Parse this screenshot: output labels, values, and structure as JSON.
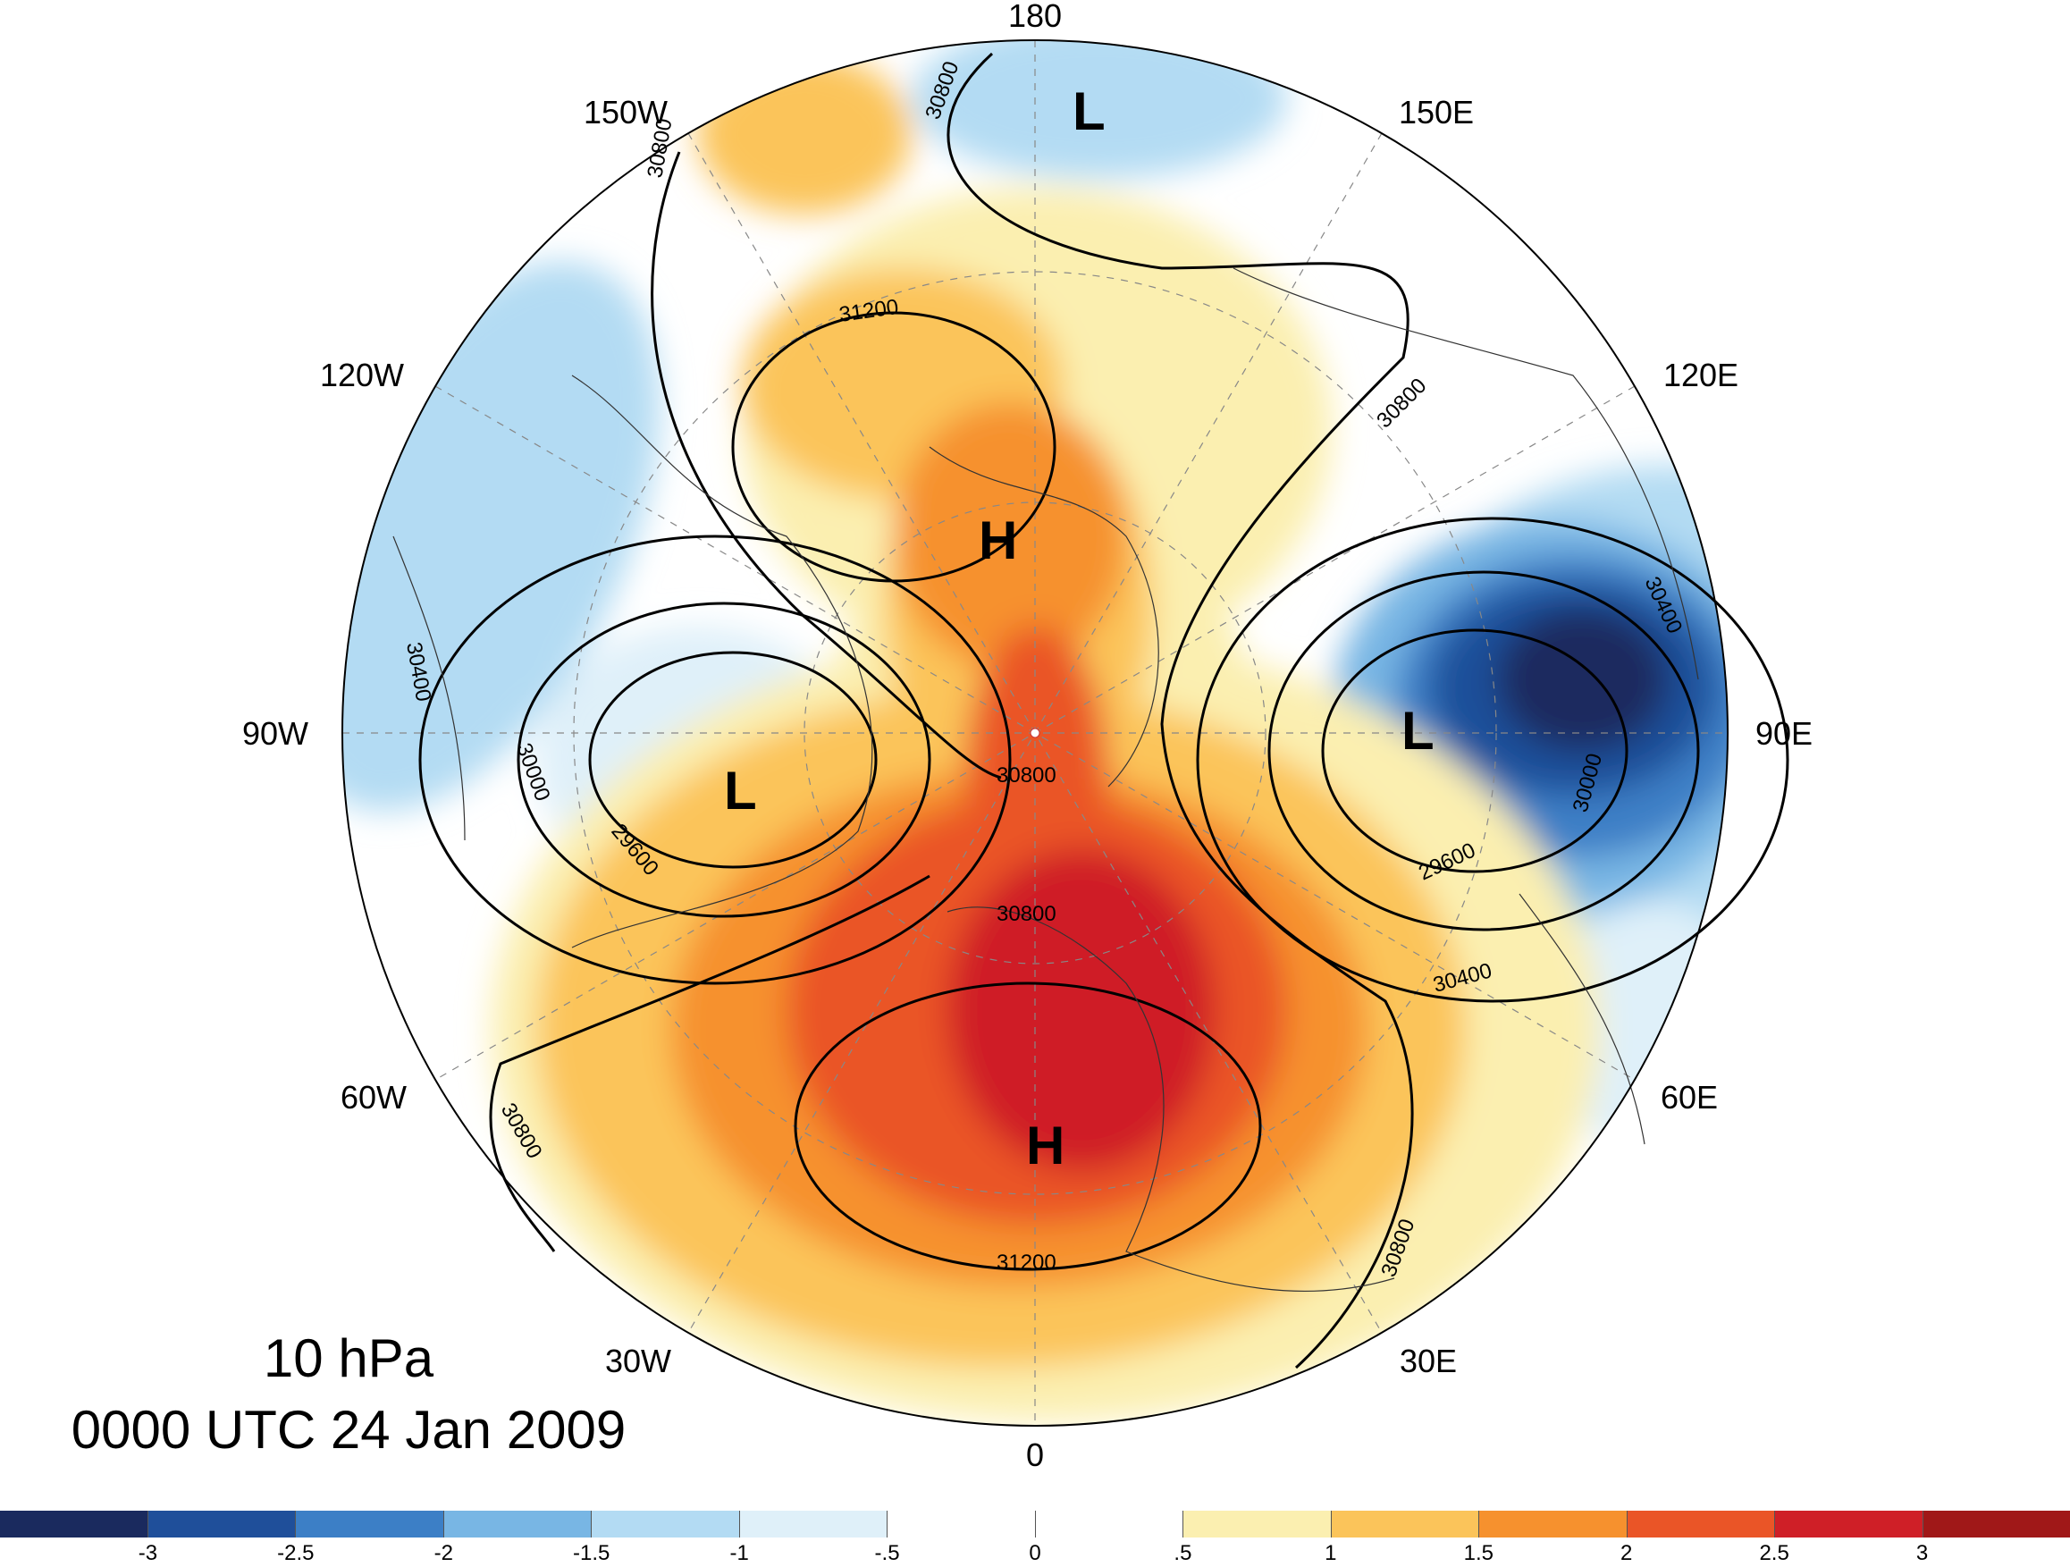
{
  "map": {
    "level": "10 hPa",
    "datetime": "0000 UTC 24 Jan 2009",
    "longitude_labels": [
      {
        "text": "180",
        "lon": 180
      },
      {
        "text": "150E",
        "lon": 150
      },
      {
        "text": "120E",
        "lon": 120
      },
      {
        "text": "90E",
        "lon": 90
      },
      {
        "text": "60E",
        "lon": 60
      },
      {
        "text": "30E",
        "lon": 30
      },
      {
        "text": "0",
        "lon": 0
      },
      {
        "text": "30W",
        "lon": -30
      },
      {
        "text": "60W",
        "lon": -60
      },
      {
        "text": "90W",
        "lon": -90
      },
      {
        "text": "120W",
        "lon": -120
      },
      {
        "text": "150W",
        "lon": -150
      }
    ],
    "pressure_centers": [
      {
        "type": "H",
        "region": "North Atlantic / Europe"
      },
      {
        "type": "H",
        "region": "Arctic / Alaska side"
      },
      {
        "type": "L",
        "region": "North America"
      },
      {
        "type": "L",
        "region": "Siberia"
      },
      {
        "type": "L",
        "region": "North Pacific"
      }
    ],
    "contour_labels": [
      "31200",
      "31200",
      "30800",
      "30800",
      "30800",
      "30800",
      "30800",
      "30800",
      "30800",
      "30400",
      "30400",
      "30400",
      "30000",
      "30000",
      "29600",
      "29600"
    ],
    "colorbar": {
      "colors": [
        "#1a2a5e",
        "#1f4f9a",
        "#3c7fc6",
        "#78b6e4",
        "#b3dbf3",
        "#dff0f9",
        "#ffffff",
        "#ffffff",
        "#fbefb0",
        "#fbc45a",
        "#f6912e",
        "#ea5527",
        "#cf1f27",
        "#a01818"
      ],
      "labels": [
        "-3",
        "-2.5",
        "-2",
        "-1.5",
        "-1",
        "-.5",
        "0",
        ".5",
        "1",
        "1.5",
        "2",
        "2.5",
        "3"
      ]
    }
  }
}
